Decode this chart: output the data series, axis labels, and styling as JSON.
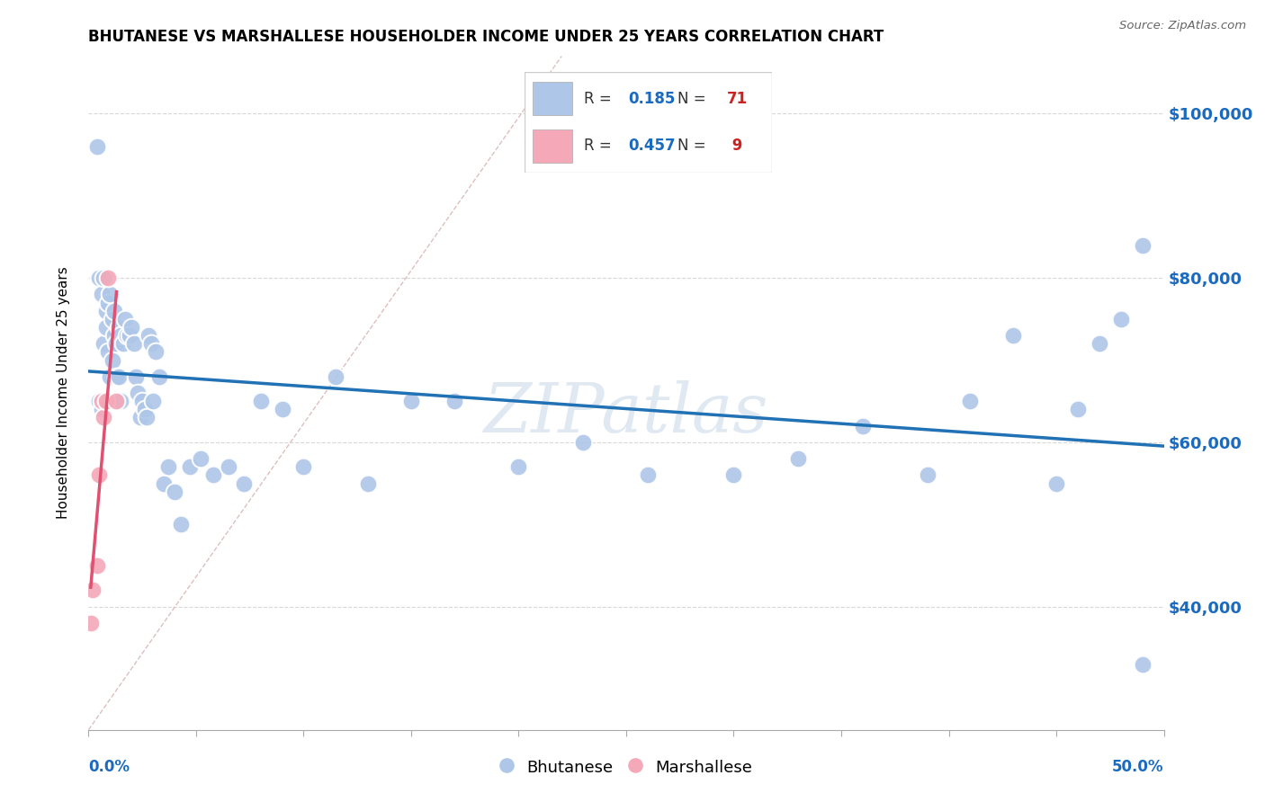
{
  "title": "BHUTANESE VS MARSHALLESE HOUSEHOLDER INCOME UNDER 25 YEARS CORRELATION CHART",
  "source": "Source: ZipAtlas.com",
  "ylabel": "Householder Income Under 25 years",
  "legend_label1": "Bhutanese",
  "legend_label2": "Marshallese",
  "R1": "0.185",
  "N1": "71",
  "R2": "0.457",
  "N2": "9",
  "ytick_values": [
    40000,
    60000,
    80000,
    100000
  ],
  "xmin": 0.0,
  "xmax": 0.5,
  "ymin": 25000,
  "ymax": 107000,
  "color_bhutanese": "#aec6e8",
  "color_marshallese": "#f4a8b8",
  "color_line1": "#2171b5",
  "color_line2": "#e05070",
  "color_diagonal": "#d4b0b0",
  "watermark": "ZIPatlas",
  "bhutanese_x": [
    0.004,
    0.005,
    0.005,
    0.006,
    0.006,
    0.007,
    0.007,
    0.008,
    0.008,
    0.009,
    0.009,
    0.01,
    0.01,
    0.011,
    0.011,
    0.012,
    0.012,
    0.013,
    0.013,
    0.014,
    0.014,
    0.015,
    0.015,
    0.016,
    0.017,
    0.018,
    0.019,
    0.02,
    0.021,
    0.022,
    0.023,
    0.024,
    0.025,
    0.026,
    0.027,
    0.028,
    0.029,
    0.03,
    0.031,
    0.033,
    0.035,
    0.037,
    0.04,
    0.043,
    0.047,
    0.052,
    0.058,
    0.065,
    0.072,
    0.08,
    0.09,
    0.1,
    0.115,
    0.13,
    0.15,
    0.17,
    0.2,
    0.23,
    0.26,
    0.3,
    0.33,
    0.36,
    0.39,
    0.41,
    0.43,
    0.45,
    0.46,
    0.47,
    0.48,
    0.49,
    0.49
  ],
  "bhutanese_y": [
    96000,
    80000,
    65000,
    78000,
    64000,
    80000,
    72000,
    76000,
    74000,
    77000,
    71000,
    78000,
    68000,
    75000,
    70000,
    76000,
    73000,
    72000,
    68000,
    74000,
    68000,
    73000,
    65000,
    72000,
    75000,
    73000,
    73000,
    74000,
    72000,
    68000,
    66000,
    63000,
    65000,
    64000,
    63000,
    73000,
    72000,
    65000,
    71000,
    68000,
    55000,
    57000,
    54000,
    50000,
    57000,
    58000,
    56000,
    57000,
    55000,
    65000,
    64000,
    57000,
    68000,
    55000,
    65000,
    65000,
    57000,
    60000,
    56000,
    56000,
    58000,
    62000,
    56000,
    65000,
    73000,
    55000,
    64000,
    72000,
    75000,
    84000,
    33000
  ],
  "marshallese_x": [
    0.001,
    0.002,
    0.004,
    0.005,
    0.006,
    0.007,
    0.008,
    0.009,
    0.013
  ],
  "marshallese_y": [
    38000,
    42000,
    45000,
    56000,
    65000,
    63000,
    65000,
    80000,
    65000
  ]
}
